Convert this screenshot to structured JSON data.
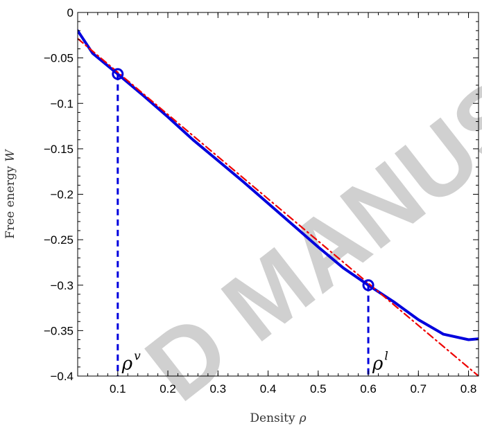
{
  "watermark": "D MANUSC",
  "chart_data": {
    "type": "line",
    "title": "",
    "xlabel": "Density",
    "xlabel_symbol": "ρ",
    "ylabel": "Free energy",
    "ylabel_symbol": "W",
    "xlim": [
      0.02,
      0.82
    ],
    "ylim": [
      -0.4,
      0
    ],
    "xticks": [
      0.1,
      0.2,
      0.3,
      0.4,
      0.5,
      0.6,
      0.7,
      0.8
    ],
    "xtick_labels": [
      "0.1",
      "0.2",
      "0.3",
      "0.4",
      "0.5",
      "0.6",
      "0.7",
      "0.8"
    ],
    "yticks": [
      0,
      -0.05,
      -0.1,
      -0.15,
      -0.2,
      -0.25,
      -0.3,
      -0.35,
      -0.4
    ],
    "ytick_labels": [
      "0",
      "−0.05",
      "−0.1",
      "−0.15",
      "−0.2",
      "−0.25",
      "−0.3",
      "−0.35",
      "−0.4"
    ],
    "grid": false,
    "series": [
      {
        "color": "#0000dd",
        "style": "solid",
        "x": [
          0.02,
          0.05,
          0.1,
          0.15,
          0.2,
          0.25,
          0.3,
          0.35,
          0.4,
          0.45,
          0.5,
          0.55,
          0.6,
          0.65,
          0.7,
          0.75,
          0.8,
          0.82
        ],
        "y": [
          -0.02,
          -0.045,
          -0.0677,
          -0.091,
          -0.115,
          -0.14,
          -0.163,
          -0.186,
          -0.21,
          -0.234,
          -0.258,
          -0.281,
          -0.3,
          -0.318,
          -0.338,
          -0.354,
          -0.36,
          -0.359
        ]
      },
      {
        "color": "#ee0000",
        "style": "dash-dot",
        "x": [
          0.02,
          0.82
        ],
        "y": [
          -0.0287,
          -0.4
        ]
      }
    ],
    "markers": [
      {
        "x": 0.1,
        "y": -0.0677,
        "color": "#0000dd"
      },
      {
        "x": 0.6,
        "y": -0.3,
        "color": "#0000dd"
      }
    ],
    "vlines": [
      {
        "x": 0.1,
        "y_top": -0.0677,
        "color": "#0000dd"
      },
      {
        "x": 0.6,
        "y_top": -0.3,
        "color": "#0000dd"
      }
    ],
    "annotations": [
      {
        "base": "ρ",
        "sup": "v",
        "x": 0.1,
        "y": -0.385
      },
      {
        "base": "ρ",
        "sup": "l",
        "x": 0.6,
        "y": -0.385
      }
    ]
  }
}
